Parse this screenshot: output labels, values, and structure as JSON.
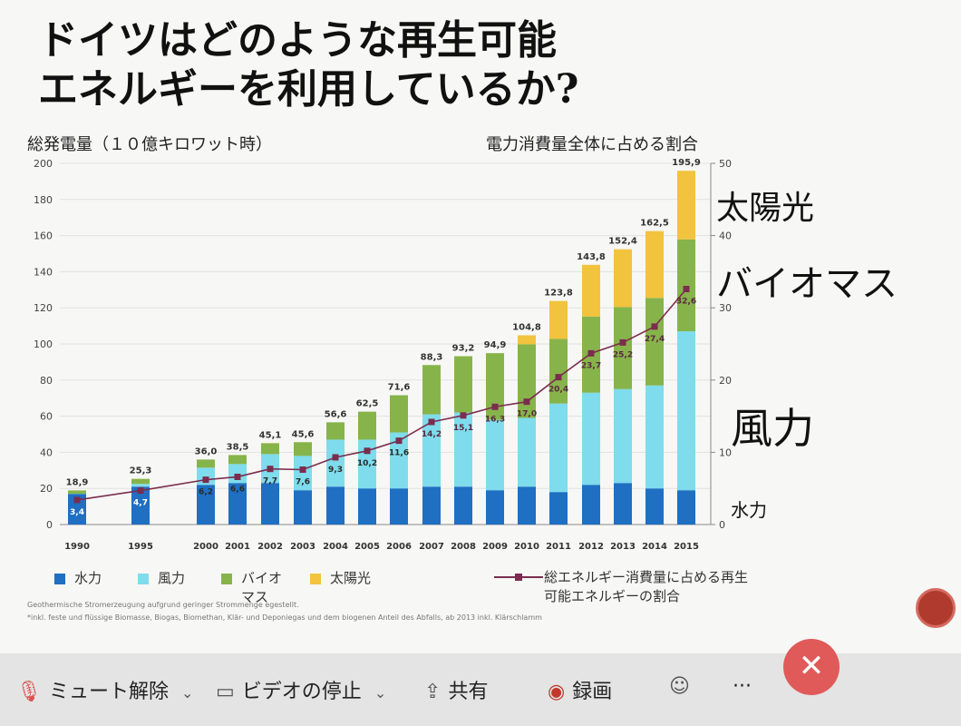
{
  "title_line1": "ドイツはどのような再生可能",
  "title_line2": "エネルギーを利用しているか?",
  "side_labels": {
    "solar": "太陽光",
    "biomass": "バイオマス",
    "wind": "風力",
    "hydro": "水力"
  },
  "legend": {
    "hydro": "水力",
    "wind": "風力",
    "bio_line1": "バイオ",
    "bio_line2": "マス",
    "solar": "太陽光",
    "line_line1": "総エネルギー消費量に占める再生",
    "line_line2": "可能エネルギーの割合"
  },
  "footnote1": "Geothermische Stromerzeugung aufgrund geringer Strommenge                                     egestellt.",
  "footnote2": "*inkl. feste und flüssige Biomasse, Biogas, Biomethan, Klär- und Deponiegas und dem biogenen Anteil des Abfalls, ab 2013 inkl. Klärschlamm",
  "toolbar": {
    "mute": "ミュート解除",
    "video": "ビデオの停止",
    "share": "共有",
    "record": "録画",
    "more": "···",
    "end": "✕"
  },
  "colors": {
    "hydro": "#1f6fc2",
    "wind": "#7fdcec",
    "biomass": "#86b44a",
    "solar": "#f2c33d",
    "line": "#7a2d4e"
  },
  "chart_data": {
    "type": "bar",
    "stacked": true,
    "ylabel": "総発電量（１０億キロワット時）",
    "y2label": "電力消費量全体に占める割合",
    "ylim": [
      0,
      200
    ],
    "y2lim": [
      0,
      50
    ],
    "yticks": [
      0,
      20,
      40,
      60,
      80,
      100,
      120,
      140,
      160,
      180,
      200
    ],
    "y2ticks": [
      0,
      10,
      20,
      30,
      40,
      50
    ],
    "categories": [
      "1990",
      "1995",
      "2000",
      "2001",
      "2002",
      "2003",
      "2004",
      "2005",
      "2006",
      "2007",
      "2008",
      "2009",
      "2010",
      "2011",
      "2012",
      "2013",
      "2014",
      "2015"
    ],
    "totals": [
      "18,9",
      "25,3",
      "36,0",
      "38,5",
      "45,1",
      "45,6",
      "56,6",
      "62,5",
      "71,6",
      "88,3",
      "93,2",
      "94,9",
      "104,8",
      "123,8",
      "143,8",
      "152,4",
      "162,5",
      "195,9"
    ],
    "series": [
      {
        "name": "水力",
        "values": [
          17,
          21,
          22,
          23,
          23,
          19,
          21,
          20,
          20,
          21,
          21,
          19,
          21,
          18,
          22,
          23,
          20,
          19
        ]
      },
      {
        "name": "風力",
        "values": [
          0.1,
          1.5,
          9.5,
          10.5,
          16,
          19,
          26,
          27,
          31,
          40,
          41,
          39,
          38,
          49,
          51,
          52,
          57,
          88
        ]
      },
      {
        "name": "バイオマス",
        "values": [
          1.8,
          2.8,
          4.5,
          5,
          6,
          7.6,
          9.6,
          15.5,
          20.6,
          27.3,
          31.2,
          36.9,
          40.8,
          35.8,
          42.2,
          45.4,
          48.5,
          50.9
        ]
      },
      {
        "name": "太陽光",
        "values": [
          0,
          0,
          0,
          0,
          0.1,
          0,
          0,
          0,
          0,
          0,
          0,
          0,
          5,
          21,
          28.6,
          32,
          37,
          38
        ]
      }
    ],
    "line": {
      "name": "総エネルギー消費量に占める再生可能エネルギーの割合",
      "values": [
        3.4,
        4.7,
        6.2,
        6.6,
        7.7,
        7.6,
        9.3,
        10.2,
        11.6,
        14.2,
        15.1,
        16.3,
        17.0,
        20.4,
        23.7,
        25.2,
        27.4,
        32.6
      ],
      "labels": [
        "3,4",
        "4,7",
        "6,2",
        "6,6",
        "7,7",
        "7,6",
        "9,3",
        "10,2",
        "11,6",
        "14,2",
        "15,1",
        "16,3",
        "17,0",
        "20,4",
        "23,7",
        "25,2",
        "27,4",
        "32,6"
      ]
    }
  }
}
